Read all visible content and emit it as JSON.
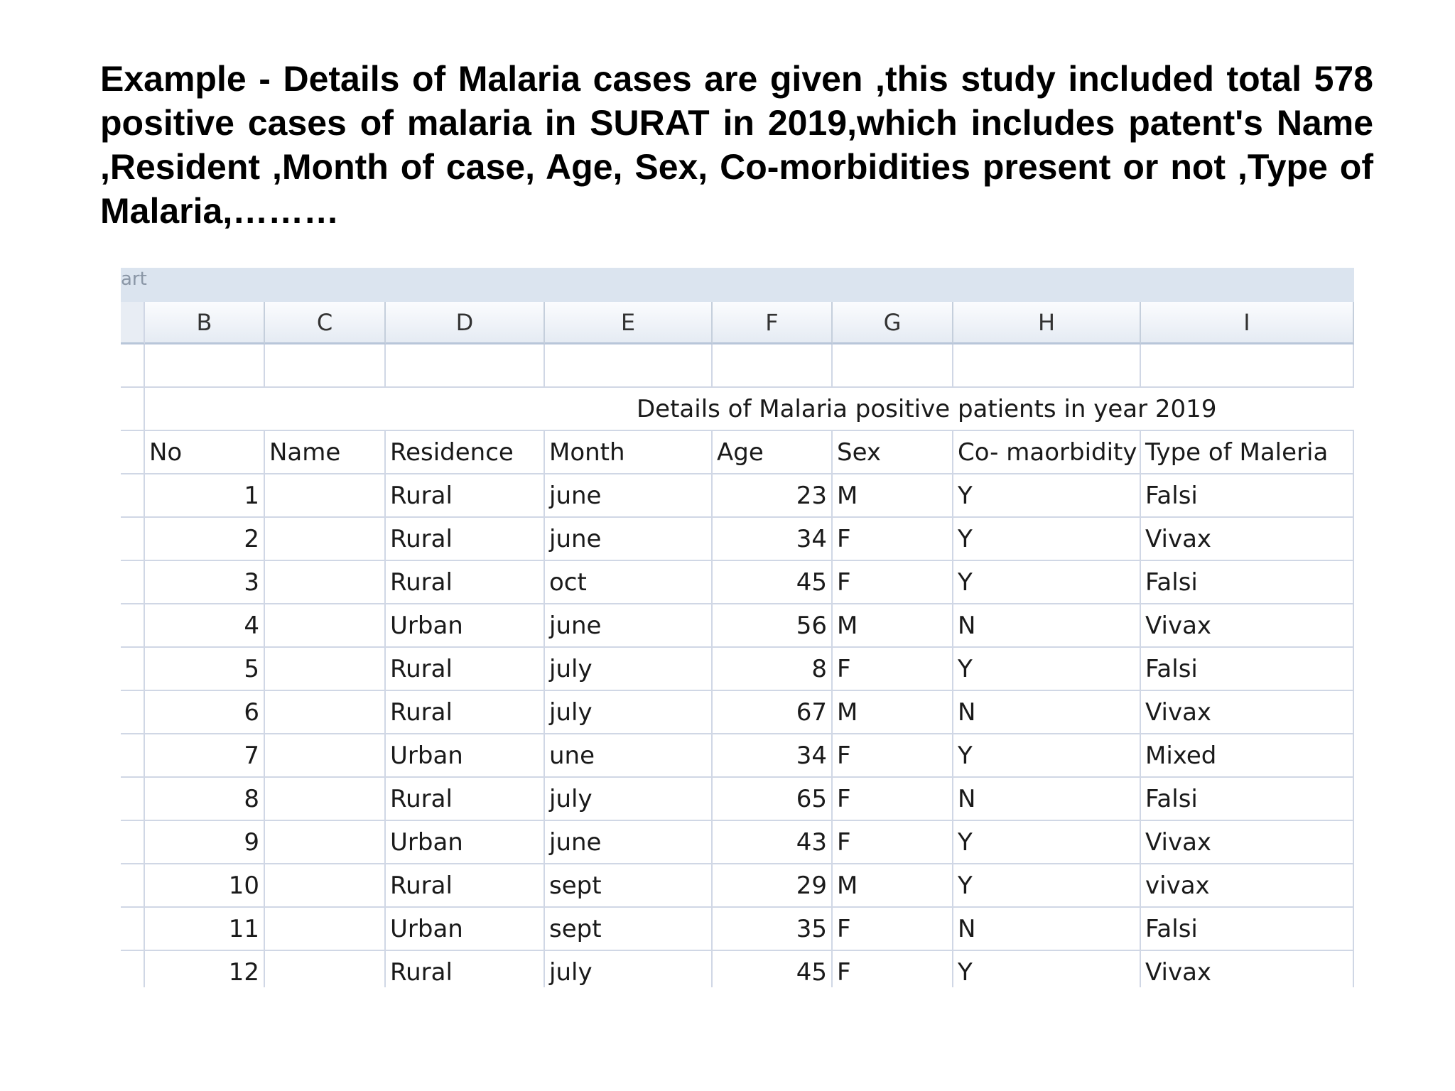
{
  "intro": {
    "text": "Example  - Details of  Malaria cases are given ,this study included total 578  positive cases of malaria in SURAT in 2019,which includes patent's Name ,Resident ,Month of case, Age, Sex, Co-morbidities present or not ,Type of Malaria,………"
  },
  "sheet": {
    "ribbon_text": "art",
    "column_letters": [
      "B",
      "C",
      "D",
      "E",
      "F",
      "G",
      "H",
      "I"
    ],
    "title": "Details of  Malaria positive patients in year 2019",
    "headers": [
      "No",
      "Name",
      "Residence",
      "Month",
      "Age",
      "Sex",
      "Co- maorbidity",
      "Type of Maleria"
    ],
    "rows": [
      [
        "1",
        "",
        "Rural",
        "june",
        "23",
        "M",
        "Y",
        "Falsi"
      ],
      [
        "2",
        "",
        "Rural",
        "june",
        "34",
        "F",
        "Y",
        "Vivax"
      ],
      [
        "3",
        "",
        "Rural",
        "oct",
        "45",
        "F",
        "Y",
        "Falsi"
      ],
      [
        "4",
        "",
        "Urban",
        "june",
        "56",
        "M",
        "N",
        "Vivax"
      ],
      [
        "5",
        "",
        "Rural",
        "july",
        "8",
        "F",
        "Y",
        "Falsi"
      ],
      [
        "6",
        "",
        "Rural",
        "july",
        "67",
        "M",
        "N",
        "Vivax"
      ],
      [
        "7",
        "",
        "Urban",
        "une",
        "34",
        "F",
        "Y",
        "Mixed"
      ],
      [
        "8",
        "",
        "Rural",
        "july",
        "65",
        "F",
        "N",
        "Falsi"
      ],
      [
        "9",
        "",
        "Urban",
        "june",
        "43",
        "F",
        "Y",
        "Vivax"
      ],
      [
        "10",
        "",
        "Rural",
        "sept",
        "29",
        "M",
        "Y",
        "vivax"
      ],
      [
        "11",
        "",
        "Urban",
        "sept",
        "35",
        "F",
        "N",
        "Falsi"
      ],
      [
        "12",
        "",
        "Rural",
        "july",
        "45",
        "F",
        "Y",
        "Vivax"
      ]
    ]
  }
}
